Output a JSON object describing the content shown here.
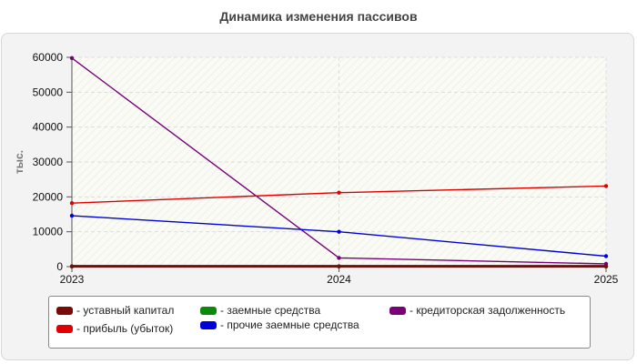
{
  "chart_data": {
    "type": "line",
    "title": "Динамика изменения пассивов",
    "ylabel": "тыс.",
    "xlabel": "",
    "x": [
      "2023",
      "2024",
      "2025"
    ],
    "ylim": [
      0,
      60000
    ],
    "yticks": [
      "0",
      "10000",
      "20000",
      "30000",
      "40000",
      "50000",
      "60000"
    ],
    "grid": true,
    "legend_position": "bottom",
    "series": [
      {
        "name": "- уставный капитал",
        "color": "#7a0a0a",
        "values": [
          100,
          100,
          100
        ]
      },
      {
        "name": "- прибыль (убыток)",
        "color": "#e00000",
        "values": [
          18200,
          21200,
          23100
        ]
      },
      {
        "name": "- заемные средства",
        "color": "#0a8a0a",
        "values": [
          0,
          0,
          0
        ]
      },
      {
        "name": "- прочие заемные средства",
        "color": "#0000dd",
        "values": [
          14600,
          10000,
          3000
        ]
      },
      {
        "name": "- кредиторская задолженность",
        "color": "#7a007a",
        "values": [
          59800,
          2500,
          800
        ]
      }
    ]
  }
}
